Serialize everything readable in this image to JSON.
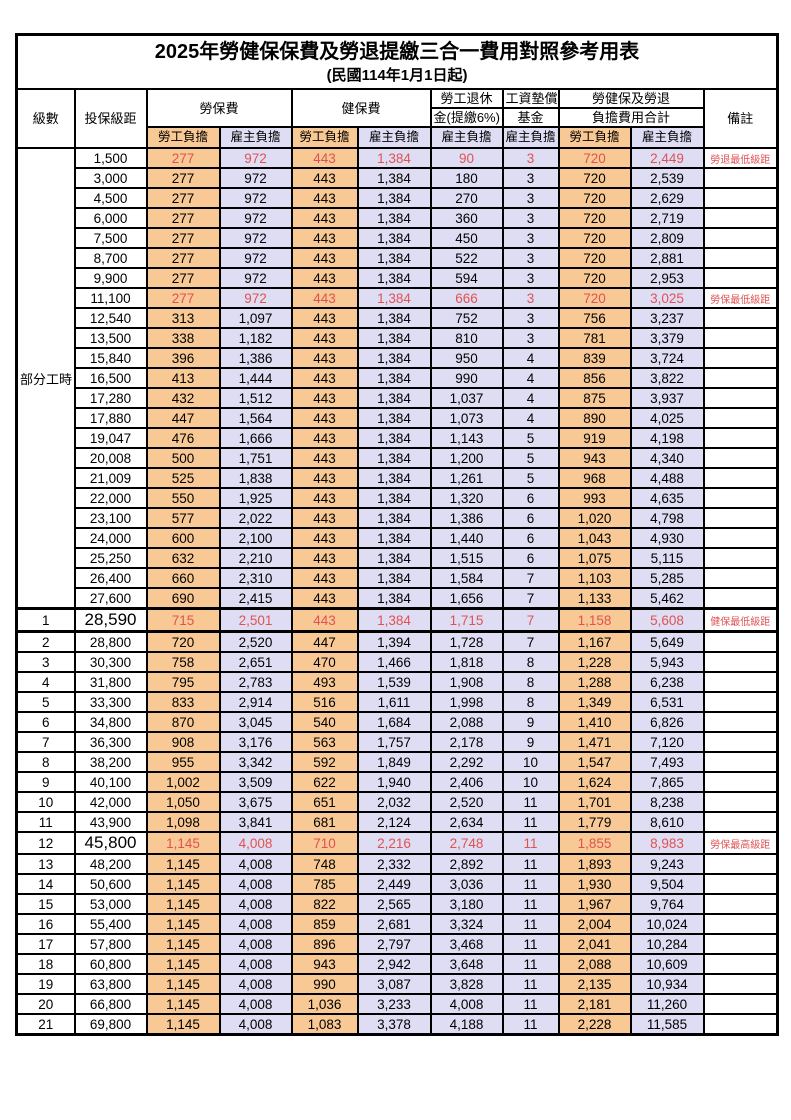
{
  "title": "2025年勞健保保費及勞退提繳三合一費用對照參考用表",
  "subtitle": "(民國114年1月1日起)",
  "colors": {
    "employee_column_bg": "#F8C995",
    "employer_column_bg": "#DFDDF3",
    "highlight_text": "#E05252",
    "border": "#000000"
  },
  "header": {
    "level": "級數",
    "bracket": "投保級距",
    "labor_insurance": "勞保費",
    "health_insurance": "健保費",
    "pension_line1": "勞工退休",
    "pension_line2": "金(提繳6%)",
    "wage_fund_line1": "工資墊償",
    "wage_fund_line2": "基金",
    "total_line1": "勞健保及勞退",
    "total_line2": "負擔費用合計",
    "remark": "備註",
    "employee": "勞工負擔",
    "employer": "雇主負擔"
  },
  "part_time_label": "部分工時",
  "part_time_rowspan": 23,
  "rows": [
    {
      "pt": true,
      "level": "",
      "bracket": "1,500",
      "li_emp": "277",
      "li_er": "972",
      "hi_emp": "443",
      "hi_er": "1,384",
      "pension": "90",
      "fund": "3",
      "tot_emp": "720",
      "tot_er": "2,449",
      "remark": "勞退最低級距",
      "red": true,
      "big": false,
      "thick_top": false
    },
    {
      "pt": true,
      "level": "",
      "bracket": "3,000",
      "li_emp": "277",
      "li_er": "972",
      "hi_emp": "443",
      "hi_er": "1,384",
      "pension": "180",
      "fund": "3",
      "tot_emp": "720",
      "tot_er": "2,539",
      "remark": "",
      "red": false,
      "big": false,
      "thick_top": false
    },
    {
      "pt": true,
      "level": "",
      "bracket": "4,500",
      "li_emp": "277",
      "li_er": "972",
      "hi_emp": "443",
      "hi_er": "1,384",
      "pension": "270",
      "fund": "3",
      "tot_emp": "720",
      "tot_er": "2,629",
      "remark": "",
      "red": false,
      "big": false,
      "thick_top": false
    },
    {
      "pt": true,
      "level": "",
      "bracket": "6,000",
      "li_emp": "277",
      "li_er": "972",
      "hi_emp": "443",
      "hi_er": "1,384",
      "pension": "360",
      "fund": "3",
      "tot_emp": "720",
      "tot_er": "2,719",
      "remark": "",
      "red": false,
      "big": false,
      "thick_top": false
    },
    {
      "pt": true,
      "level": "",
      "bracket": "7,500",
      "li_emp": "277",
      "li_er": "972",
      "hi_emp": "443",
      "hi_er": "1,384",
      "pension": "450",
      "fund": "3",
      "tot_emp": "720",
      "tot_er": "2,809",
      "remark": "",
      "red": false,
      "big": false,
      "thick_top": false
    },
    {
      "pt": true,
      "level": "",
      "bracket": "8,700",
      "li_emp": "277",
      "li_er": "972",
      "hi_emp": "443",
      "hi_er": "1,384",
      "pension": "522",
      "fund": "3",
      "tot_emp": "720",
      "tot_er": "2,881",
      "remark": "",
      "red": false,
      "big": false,
      "thick_top": false
    },
    {
      "pt": true,
      "level": "",
      "bracket": "9,900",
      "li_emp": "277",
      "li_er": "972",
      "hi_emp": "443",
      "hi_er": "1,384",
      "pension": "594",
      "fund": "3",
      "tot_emp": "720",
      "tot_er": "2,953",
      "remark": "",
      "red": false,
      "big": false,
      "thick_top": false
    },
    {
      "pt": true,
      "level": "",
      "bracket": "11,100",
      "li_emp": "277",
      "li_er": "972",
      "hi_emp": "443",
      "hi_er": "1,384",
      "pension": "666",
      "fund": "3",
      "tot_emp": "720",
      "tot_er": "3,025",
      "remark": "勞保最低級距",
      "red": true,
      "big": false,
      "thick_top": false
    },
    {
      "pt": true,
      "level": "",
      "bracket": "12,540",
      "li_emp": "313",
      "li_er": "1,097",
      "hi_emp": "443",
      "hi_er": "1,384",
      "pension": "752",
      "fund": "3",
      "tot_emp": "756",
      "tot_er": "3,237",
      "remark": "",
      "red": false,
      "big": false,
      "thick_top": false
    },
    {
      "pt": true,
      "level": "",
      "bracket": "13,500",
      "li_emp": "338",
      "li_er": "1,182",
      "hi_emp": "443",
      "hi_er": "1,384",
      "pension": "810",
      "fund": "3",
      "tot_emp": "781",
      "tot_er": "3,379",
      "remark": "",
      "red": false,
      "big": false,
      "thick_top": false
    },
    {
      "pt": true,
      "level": "",
      "bracket": "15,840",
      "li_emp": "396",
      "li_er": "1,386",
      "hi_emp": "443",
      "hi_er": "1,384",
      "pension": "950",
      "fund": "4",
      "tot_emp": "839",
      "tot_er": "3,724",
      "remark": "",
      "red": false,
      "big": false,
      "thick_top": false
    },
    {
      "pt": true,
      "level": "",
      "bracket": "16,500",
      "li_emp": "413",
      "li_er": "1,444",
      "hi_emp": "443",
      "hi_er": "1,384",
      "pension": "990",
      "fund": "4",
      "tot_emp": "856",
      "tot_er": "3,822",
      "remark": "",
      "red": false,
      "big": false,
      "thick_top": false
    },
    {
      "pt": true,
      "level": "",
      "bracket": "17,280",
      "li_emp": "432",
      "li_er": "1,512",
      "hi_emp": "443",
      "hi_er": "1,384",
      "pension": "1,037",
      "fund": "4",
      "tot_emp": "875",
      "tot_er": "3,937",
      "remark": "",
      "red": false,
      "big": false,
      "thick_top": false
    },
    {
      "pt": true,
      "level": "",
      "bracket": "17,880",
      "li_emp": "447",
      "li_er": "1,564",
      "hi_emp": "443",
      "hi_er": "1,384",
      "pension": "1,073",
      "fund": "4",
      "tot_emp": "890",
      "tot_er": "4,025",
      "remark": "",
      "red": false,
      "big": false,
      "thick_top": false
    },
    {
      "pt": true,
      "level": "",
      "bracket": "19,047",
      "li_emp": "476",
      "li_er": "1,666",
      "hi_emp": "443",
      "hi_er": "1,384",
      "pension": "1,143",
      "fund": "5",
      "tot_emp": "919",
      "tot_er": "4,198",
      "remark": "",
      "red": false,
      "big": false,
      "thick_top": false
    },
    {
      "pt": true,
      "level": "",
      "bracket": "20,008",
      "li_emp": "500",
      "li_er": "1,751",
      "hi_emp": "443",
      "hi_er": "1,384",
      "pension": "1,200",
      "fund": "5",
      "tot_emp": "943",
      "tot_er": "4,340",
      "remark": "",
      "red": false,
      "big": false,
      "thick_top": false
    },
    {
      "pt": true,
      "level": "",
      "bracket": "21,009",
      "li_emp": "525",
      "li_er": "1,838",
      "hi_emp": "443",
      "hi_er": "1,384",
      "pension": "1,261",
      "fund": "5",
      "tot_emp": "968",
      "tot_er": "4,488",
      "remark": "",
      "red": false,
      "big": false,
      "thick_top": false
    },
    {
      "pt": true,
      "level": "",
      "bracket": "22,000",
      "li_emp": "550",
      "li_er": "1,925",
      "hi_emp": "443",
      "hi_er": "1,384",
      "pension": "1,320",
      "fund": "6",
      "tot_emp": "993",
      "tot_er": "4,635",
      "remark": "",
      "red": false,
      "big": false,
      "thick_top": false
    },
    {
      "pt": true,
      "level": "",
      "bracket": "23,100",
      "li_emp": "577",
      "li_er": "2,022",
      "hi_emp": "443",
      "hi_er": "1,384",
      "pension": "1,386",
      "fund": "6",
      "tot_emp": "1,020",
      "tot_er": "4,798",
      "remark": "",
      "red": false,
      "big": false,
      "thick_top": false
    },
    {
      "pt": true,
      "level": "",
      "bracket": "24,000",
      "li_emp": "600",
      "li_er": "2,100",
      "hi_emp": "443",
      "hi_er": "1,384",
      "pension": "1,440",
      "fund": "6",
      "tot_emp": "1,043",
      "tot_er": "4,930",
      "remark": "",
      "red": false,
      "big": false,
      "thick_top": false
    },
    {
      "pt": true,
      "level": "",
      "bracket": "25,250",
      "li_emp": "632",
      "li_er": "2,210",
      "hi_emp": "443",
      "hi_er": "1,384",
      "pension": "1,515",
      "fund": "6",
      "tot_emp": "1,075",
      "tot_er": "5,115",
      "remark": "",
      "red": false,
      "big": false,
      "thick_top": false
    },
    {
      "pt": true,
      "level": "",
      "bracket": "26,400",
      "li_emp": "660",
      "li_er": "2,310",
      "hi_emp": "443",
      "hi_er": "1,384",
      "pension": "1,584",
      "fund": "7",
      "tot_emp": "1,103",
      "tot_er": "5,285",
      "remark": "",
      "red": false,
      "big": false,
      "thick_top": false
    },
    {
      "pt": true,
      "level": "",
      "bracket": "27,600",
      "li_emp": "690",
      "li_er": "2,415",
      "hi_emp": "443",
      "hi_er": "1,384",
      "pension": "1,656",
      "fund": "7",
      "tot_emp": "1,133",
      "tot_er": "5,462",
      "remark": "",
      "red": false,
      "big": false,
      "thick_top": false
    },
    {
      "pt": false,
      "level": "1",
      "bracket": "28,590",
      "li_emp": "715",
      "li_er": "2,501",
      "hi_emp": "443",
      "hi_er": "1,384",
      "pension": "1,715",
      "fund": "7",
      "tot_emp": "1,158",
      "tot_er": "5,608",
      "remark": "健保最低級距",
      "red": true,
      "big": true,
      "thick_top": true
    },
    {
      "pt": false,
      "level": "2",
      "bracket": "28,800",
      "li_emp": "720",
      "li_er": "2,520",
      "hi_emp": "447",
      "hi_er": "1,394",
      "pension": "1,728",
      "fund": "7",
      "tot_emp": "1,167",
      "tot_er": "5,649",
      "remark": "",
      "red": false,
      "big": false,
      "thick_top": true
    },
    {
      "pt": false,
      "level": "3",
      "bracket": "30,300",
      "li_emp": "758",
      "li_er": "2,651",
      "hi_emp": "470",
      "hi_er": "1,466",
      "pension": "1,818",
      "fund": "8",
      "tot_emp": "1,228",
      "tot_er": "5,943",
      "remark": "",
      "red": false,
      "big": false,
      "thick_top": false
    },
    {
      "pt": false,
      "level": "4",
      "bracket": "31,800",
      "li_emp": "795",
      "li_er": "2,783",
      "hi_emp": "493",
      "hi_er": "1,539",
      "pension": "1,908",
      "fund": "8",
      "tot_emp": "1,288",
      "tot_er": "6,238",
      "remark": "",
      "red": false,
      "big": false,
      "thick_top": false
    },
    {
      "pt": false,
      "level": "5",
      "bracket": "33,300",
      "li_emp": "833",
      "li_er": "2,914",
      "hi_emp": "516",
      "hi_er": "1,611",
      "pension": "1,998",
      "fund": "8",
      "tot_emp": "1,349",
      "tot_er": "6,531",
      "remark": "",
      "red": false,
      "big": false,
      "thick_top": false
    },
    {
      "pt": false,
      "level": "6",
      "bracket": "34,800",
      "li_emp": "870",
      "li_er": "3,045",
      "hi_emp": "540",
      "hi_er": "1,684",
      "pension": "2,088",
      "fund": "9",
      "tot_emp": "1,410",
      "tot_er": "6,826",
      "remark": "",
      "red": false,
      "big": false,
      "thick_top": false
    },
    {
      "pt": false,
      "level": "7",
      "bracket": "36,300",
      "li_emp": "908",
      "li_er": "3,176",
      "hi_emp": "563",
      "hi_er": "1,757",
      "pension": "2,178",
      "fund": "9",
      "tot_emp": "1,471",
      "tot_er": "7,120",
      "remark": "",
      "red": false,
      "big": false,
      "thick_top": false
    },
    {
      "pt": false,
      "level": "8",
      "bracket": "38,200",
      "li_emp": "955",
      "li_er": "3,342",
      "hi_emp": "592",
      "hi_er": "1,849",
      "pension": "2,292",
      "fund": "10",
      "tot_emp": "1,547",
      "tot_er": "7,493",
      "remark": "",
      "red": false,
      "big": false,
      "thick_top": false
    },
    {
      "pt": false,
      "level": "9",
      "bracket": "40,100",
      "li_emp": "1,002",
      "li_er": "3,509",
      "hi_emp": "622",
      "hi_er": "1,940",
      "pension": "2,406",
      "fund": "10",
      "tot_emp": "1,624",
      "tot_er": "7,865",
      "remark": "",
      "red": false,
      "big": false,
      "thick_top": false
    },
    {
      "pt": false,
      "level": "10",
      "bracket": "42,000",
      "li_emp": "1,050",
      "li_er": "3,675",
      "hi_emp": "651",
      "hi_er": "2,032",
      "pension": "2,520",
      "fund": "11",
      "tot_emp": "1,701",
      "tot_er": "8,238",
      "remark": "",
      "red": false,
      "big": false,
      "thick_top": false
    },
    {
      "pt": false,
      "level": "11",
      "bracket": "43,900",
      "li_emp": "1,098",
      "li_er": "3,841",
      "hi_emp": "681",
      "hi_er": "2,124",
      "pension": "2,634",
      "fund": "11",
      "tot_emp": "1,779",
      "tot_er": "8,610",
      "remark": "",
      "red": false,
      "big": false,
      "thick_top": false
    },
    {
      "pt": false,
      "level": "12",
      "bracket": "45,800",
      "li_emp": "1,145",
      "li_er": "4,008",
      "hi_emp": "710",
      "hi_er": "2,216",
      "pension": "2,748",
      "fund": "11",
      "tot_emp": "1,855",
      "tot_er": "8,983",
      "remark": "勞保最高級距",
      "red": true,
      "big": true,
      "thick_top": false
    },
    {
      "pt": false,
      "level": "13",
      "bracket": "48,200",
      "li_emp": "1,145",
      "li_er": "4,008",
      "hi_emp": "748",
      "hi_er": "2,332",
      "pension": "2,892",
      "fund": "11",
      "tot_emp": "1,893",
      "tot_er": "9,243",
      "remark": "",
      "red": false,
      "big": false,
      "thick_top": false
    },
    {
      "pt": false,
      "level": "14",
      "bracket": "50,600",
      "li_emp": "1,145",
      "li_er": "4,008",
      "hi_emp": "785",
      "hi_er": "2,449",
      "pension": "3,036",
      "fund": "11",
      "tot_emp": "1,930",
      "tot_er": "9,504",
      "remark": "",
      "red": false,
      "big": false,
      "thick_top": false
    },
    {
      "pt": false,
      "level": "15",
      "bracket": "53,000",
      "li_emp": "1,145",
      "li_er": "4,008",
      "hi_emp": "822",
      "hi_er": "2,565",
      "pension": "3,180",
      "fund": "11",
      "tot_emp": "1,967",
      "tot_er": "9,764",
      "remark": "",
      "red": false,
      "big": false,
      "thick_top": false
    },
    {
      "pt": false,
      "level": "16",
      "bracket": "55,400",
      "li_emp": "1,145",
      "li_er": "4,008",
      "hi_emp": "859",
      "hi_er": "2,681",
      "pension": "3,324",
      "fund": "11",
      "tot_emp": "2,004",
      "tot_er": "10,024",
      "remark": "",
      "red": false,
      "big": false,
      "thick_top": false
    },
    {
      "pt": false,
      "level": "17",
      "bracket": "57,800",
      "li_emp": "1,145",
      "li_er": "4,008",
      "hi_emp": "896",
      "hi_er": "2,797",
      "pension": "3,468",
      "fund": "11",
      "tot_emp": "2,041",
      "tot_er": "10,284",
      "remark": "",
      "red": false,
      "big": false,
      "thick_top": false
    },
    {
      "pt": false,
      "level": "18",
      "bracket": "60,800",
      "li_emp": "1,145",
      "li_er": "4,008",
      "hi_emp": "943",
      "hi_er": "2,942",
      "pension": "3,648",
      "fund": "11",
      "tot_emp": "2,088",
      "tot_er": "10,609",
      "remark": "",
      "red": false,
      "big": false,
      "thick_top": false
    },
    {
      "pt": false,
      "level": "19",
      "bracket": "63,800",
      "li_emp": "1,145",
      "li_er": "4,008",
      "hi_emp": "990",
      "hi_er": "3,087",
      "pension": "3,828",
      "fund": "11",
      "tot_emp": "2,135",
      "tot_er": "10,934",
      "remark": "",
      "red": false,
      "big": false,
      "thick_top": false
    },
    {
      "pt": false,
      "level": "20",
      "bracket": "66,800",
      "li_emp": "1,145",
      "li_er": "4,008",
      "hi_emp": "1,036",
      "hi_er": "3,233",
      "pension": "4,008",
      "fund": "11",
      "tot_emp": "2,181",
      "tot_er": "11,260",
      "remark": "",
      "red": false,
      "big": false,
      "thick_top": false
    },
    {
      "pt": false,
      "level": "21",
      "bracket": "69,800",
      "li_emp": "1,145",
      "li_er": "4,008",
      "hi_emp": "1,083",
      "hi_er": "3,378",
      "pension": "4,188",
      "fund": "11",
      "tot_emp": "2,228",
      "tot_er": "11,585",
      "remark": "",
      "red": false,
      "big": false,
      "thick_top": false
    }
  ]
}
